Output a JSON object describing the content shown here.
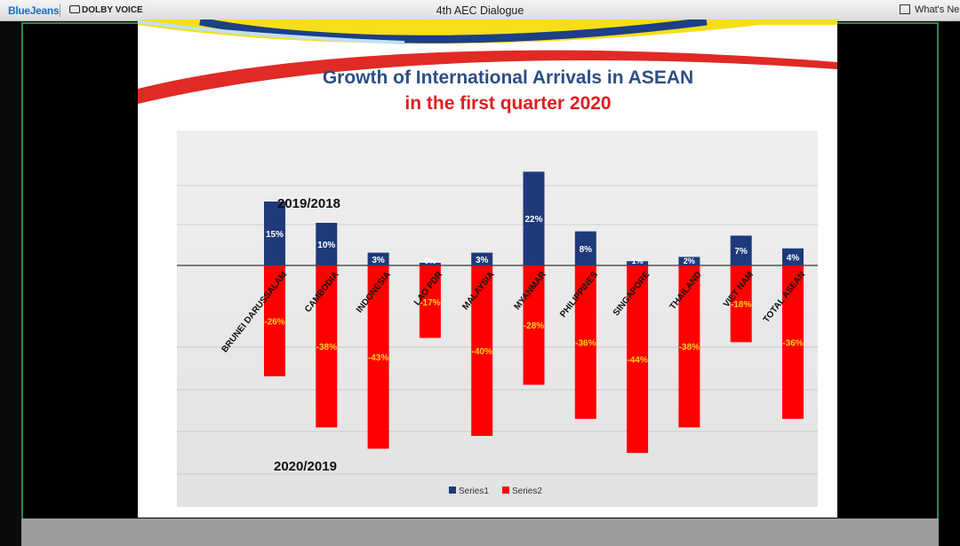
{
  "app": {
    "brand": "BlueJeans",
    "audio_badge": "DOLBY VOICE",
    "window_title": "4th AEC Dialogue",
    "whats_new": "What's Ne"
  },
  "slide": {
    "title_line1": "Growth of International Arrivals in ASEAN",
    "title_line2": "in the first quarter 2020",
    "label_upper": "2019/2018",
    "label_lower": "2020/2019"
  },
  "colors": {
    "series1": "#1f3a7a",
    "series2": "#ff0000",
    "series2_label": "#ffd21a",
    "title1": "#2c4e85",
    "title2": "#e11d1d",
    "frame": "#2d8a4a"
  },
  "chart_data": {
    "type": "bar",
    "categories": [
      "BRUNEI DARUSSALAM",
      "CAMBODIA",
      "INDONESIA",
      "LAO PDR",
      "MALAYSIA",
      "MYANMAR",
      "PHILIPPINES",
      "SINGAPORE",
      "THAILAND",
      "VIET NAM",
      "TOTAL ASEAN"
    ],
    "series": [
      {
        "name": "Series1",
        "values": [
          15,
          10,
          3,
          0,
          3,
          22,
          8,
          1,
          2,
          7,
          4
        ],
        "labels": [
          "15%",
          "10%",
          "3%",
          "0%",
          "3%",
          "22%",
          "8%",
          "1%",
          "2%",
          "7%",
          "4%"
        ]
      },
      {
        "name": "Series2",
        "values": [
          -26,
          -38,
          -43,
          -17,
          -40,
          -28,
          -36,
          -44,
          -38,
          -18,
          -36
        ],
        "labels": [
          "-26%",
          "-38%",
          "-43%",
          "-17%",
          "-40%",
          "-28%",
          "-36%",
          "-44%",
          "-38%",
          "-18%",
          "-36%"
        ]
      }
    ],
    "legend": [
      "Series1",
      "Series2"
    ],
    "legend_position": "bottom",
    "gridlines": true
  }
}
